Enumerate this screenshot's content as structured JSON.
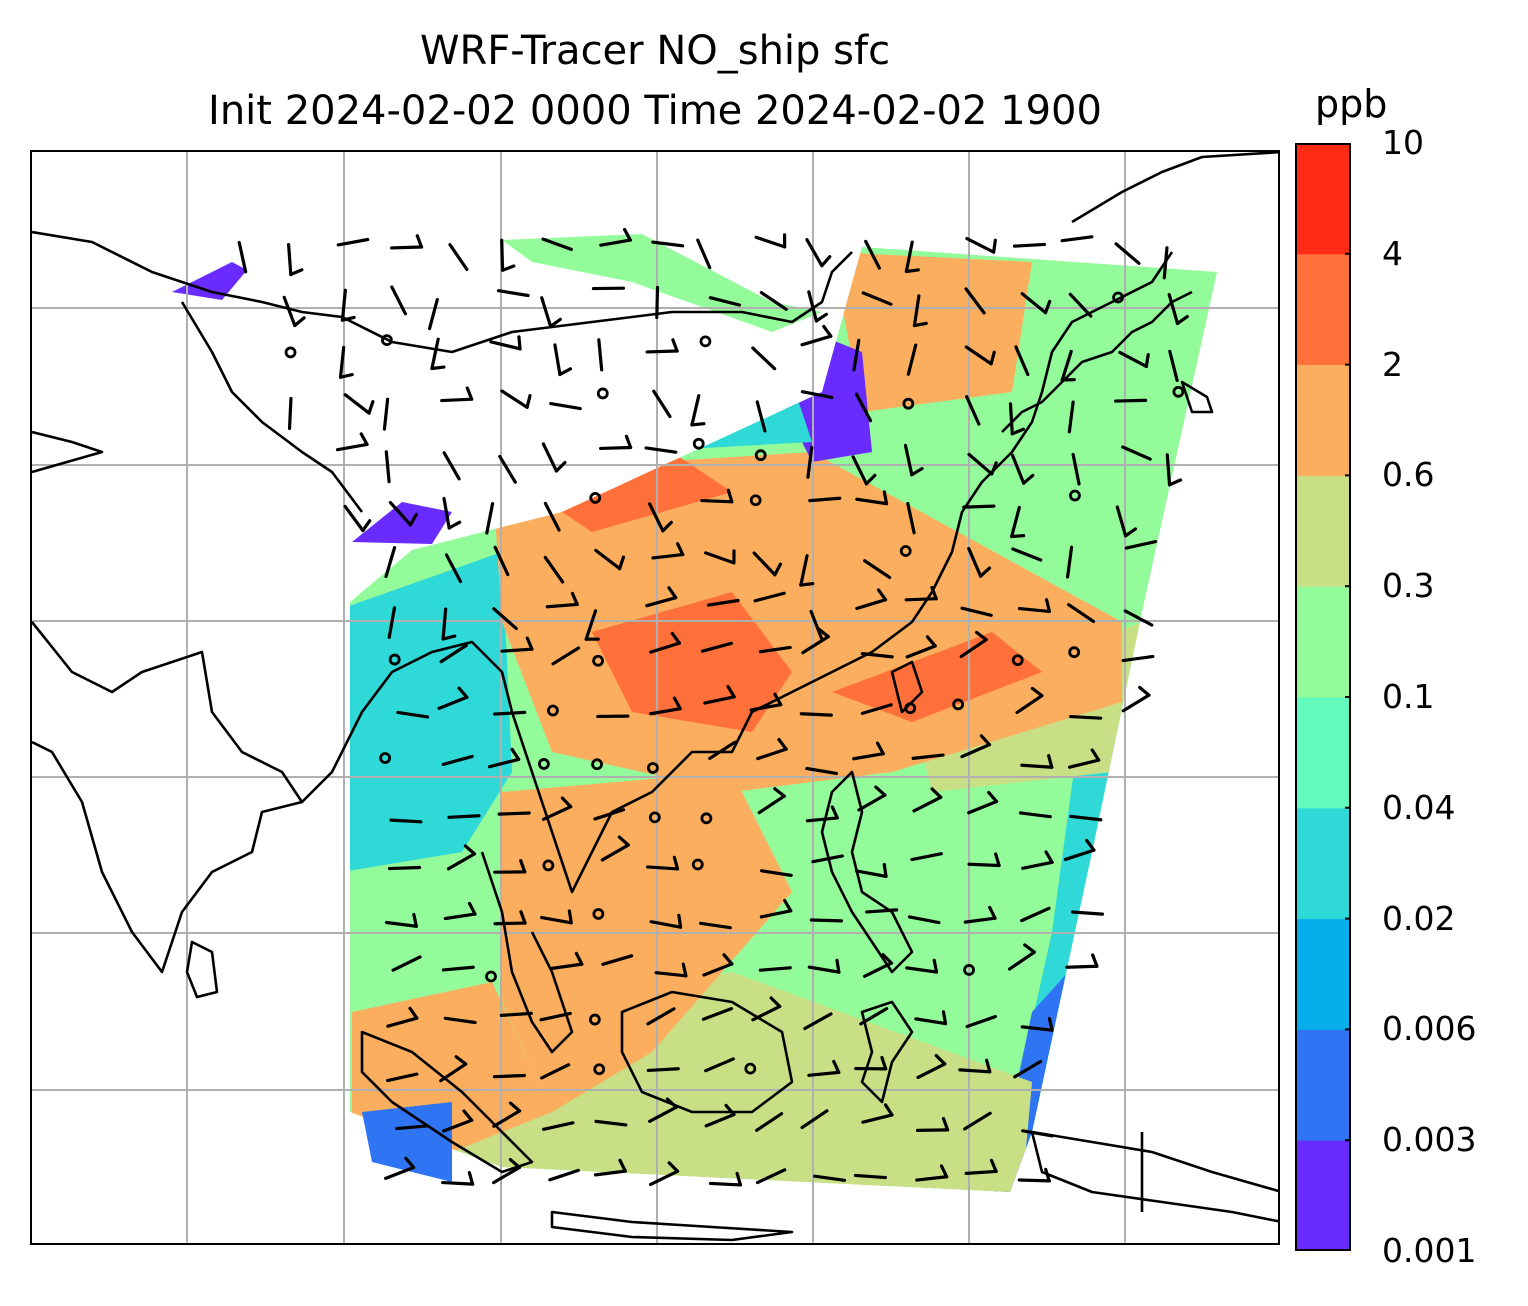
{
  "title": {
    "line1": "WRF-Tracer NO_ship sfc",
    "line2": "Init 2024-02-02 0000 Time 2024-02-02 1900"
  },
  "colorbar": {
    "unit": "ppb",
    "ticks": [
      "0.001",
      "0.003",
      "0.006",
      "0.02",
      "0.04",
      "0.1",
      "0.3",
      "0.6",
      "2",
      "4",
      "10"
    ],
    "colors": [
      "#6a2bff",
      "#2f74f2",
      "#05aeea",
      "#2ed9d8",
      "#60fbbd",
      "#94fb9a",
      "#c9df85",
      "#fcae5f",
      "#ff703a",
      "#ff2b14"
    ]
  },
  "map": {
    "variable": "NO_ship",
    "level": "sfc",
    "gridlines": true,
    "coastline_color": "#000000",
    "gridline_color": "#b0b0b0"
  }
}
